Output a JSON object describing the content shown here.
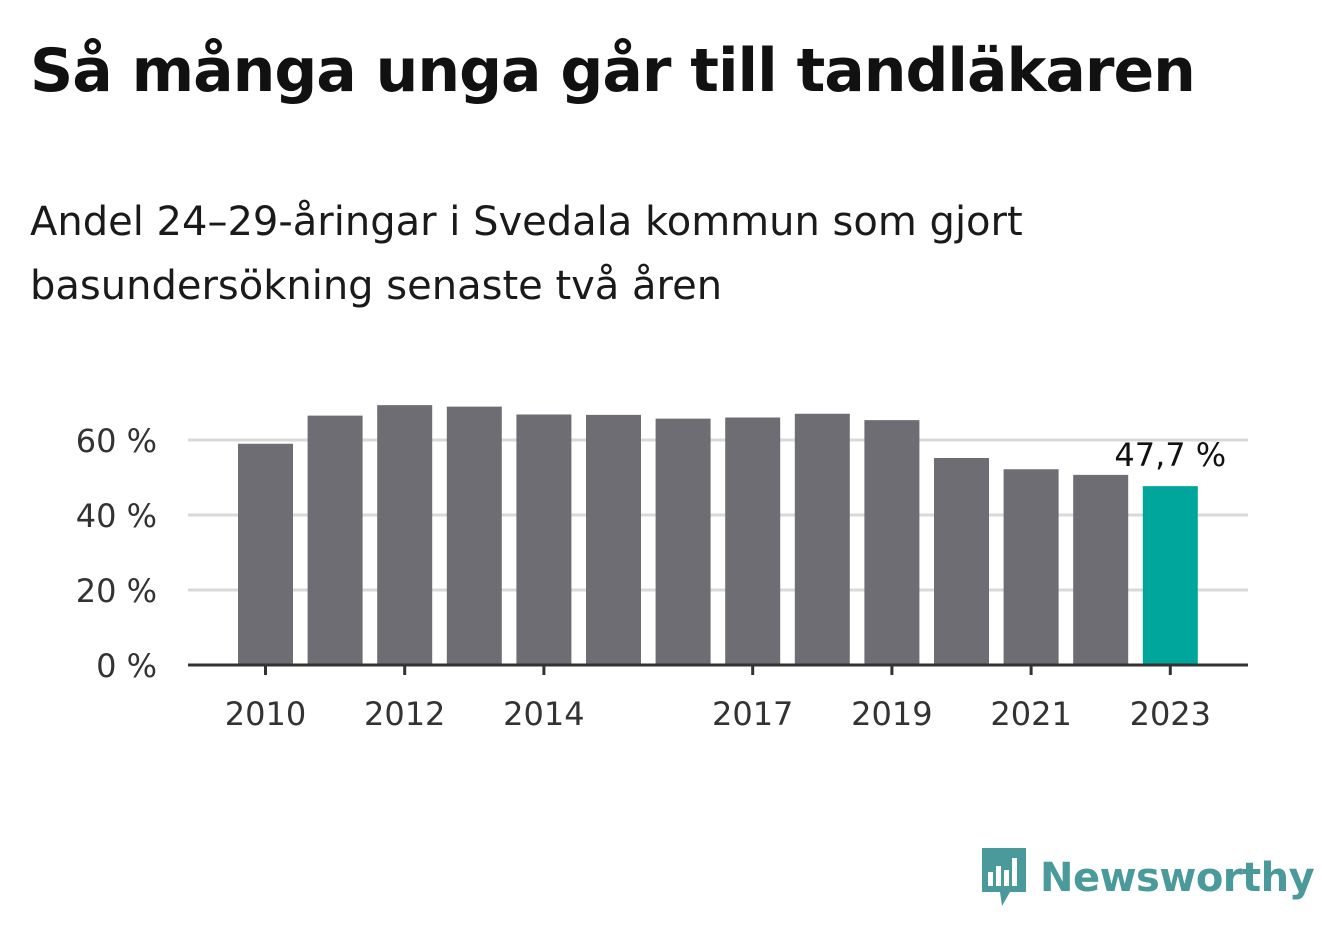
{
  "header": {
    "title": "Så många unga går till tandläkaren",
    "subtitle": "Andel 24–29-åringar i Svedala kommun som gjort basundersökning senaste två åren"
  },
  "brand": {
    "name": "Newsworthy",
    "icon": "newsworthy-logo-icon",
    "color": "#4a9a9b"
  },
  "chart_data": {
    "type": "bar",
    "categories": [
      "2010",
      "2011",
      "2012",
      "2013",
      "2014",
      "2015",
      "2016",
      "2017",
      "2018",
      "2019",
      "2020",
      "2021",
      "2022",
      "2023"
    ],
    "values": [
      59.0,
      66.5,
      69.3,
      68.9,
      66.8,
      66.7,
      65.7,
      66.0,
      67.0,
      65.3,
      55.2,
      52.2,
      50.7,
      47.7
    ],
    "x_tick_labels": [
      "2010",
      "2012",
      "2014",
      "2017",
      "2019",
      "2021",
      "2023"
    ],
    "y_ticks": [
      0,
      20,
      40,
      60
    ],
    "y_tick_labels": [
      "0 %",
      "20 %",
      "40 %",
      "60 %"
    ],
    "ylim": [
      0,
      72
    ],
    "annotation": {
      "category": "2023",
      "text": "47,7 %"
    },
    "colors": {
      "bar": "#6e6d74",
      "highlight": "#00a69b",
      "grid": "#d9d9d9",
      "axis": "#333333"
    },
    "highlight_category": "2023",
    "grid": true,
    "xlabel": "",
    "ylabel": ""
  }
}
